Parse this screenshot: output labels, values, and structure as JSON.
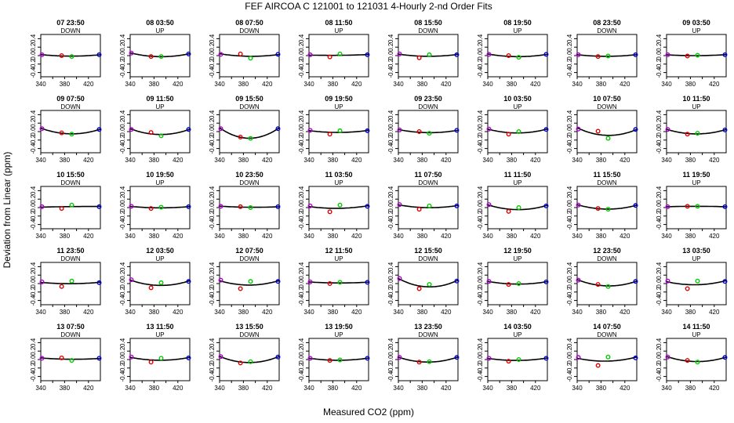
{
  "chart_data": {
    "type": "scatter",
    "title": "FEF   AIRCOA C   121001 to 121031   4-Hourly 2-nd Order Fits",
    "xlabel": "Measured CO2 (ppm)",
    "ylabel": "Deviation from Linear (ppm)",
    "xlim": [
      340,
      440
    ],
    "ylim": [
      -0.5,
      0.5
    ],
    "xticks": [
      340,
      380,
      420
    ],
    "xticks_minor": [
      360,
      400
    ],
    "yticks": [
      -0.4,
      -0.2,
      0,
      0.2,
      0.4
    ],
    "ytick_labels": [
      "-0.4",
      "-0.2",
      "0.0",
      "0.2",
      "0.4"
    ],
    "standards_x": [
      342,
      375,
      392,
      438
    ],
    "marker_colors": [
      "#aa00cc",
      "#dd0000",
      "#00cc00",
      "#0000cc"
    ],
    "layout": "5 rows x 8 columns",
    "panels": [
      {
        "time": "07 23:50",
        "mode": "DOWN",
        "y": [
          0.02,
          0.0,
          -0.02,
          0.02
        ]
      },
      {
        "time": "08 03:50",
        "mode": "UP",
        "y": [
          0.06,
          -0.02,
          -0.02,
          0.04
        ]
      },
      {
        "time": "08 07:50",
        "mode": "DOWN",
        "y": [
          0.03,
          0.04,
          -0.06,
          0.03
        ]
      },
      {
        "time": "08 11:50",
        "mode": "UP",
        "y": [
          0.02,
          -0.03,
          0.04,
          0.02
        ]
      },
      {
        "time": "08 15:50",
        "mode": "DOWN",
        "y": [
          0.04,
          -0.05,
          0.02,
          0.02
        ]
      },
      {
        "time": "08 19:50",
        "mode": "UP",
        "y": [
          0.03,
          0.0,
          -0.04,
          0.03
        ]
      },
      {
        "time": "08 23:50",
        "mode": "DOWN",
        "y": [
          0.02,
          -0.02,
          -0.01,
          0.02
        ]
      },
      {
        "time": "09 03:50",
        "mode": "UP",
        "y": [
          0.02,
          -0.01,
          0.01,
          0.02
        ]
      },
      {
        "time": "09 07:50",
        "mode": "DOWN",
        "y": [
          0.07,
          -0.03,
          -0.06,
          0.05
        ]
      },
      {
        "time": "09 11:50",
        "mode": "UP",
        "y": [
          0.05,
          -0.02,
          -0.1,
          0.05
        ]
      },
      {
        "time": "09 15:50",
        "mode": "DOWN",
        "y": [
          0.07,
          -0.13,
          -0.16,
          0.07
        ]
      },
      {
        "time": "09 19:50",
        "mode": "UP",
        "y": [
          0.03,
          -0.06,
          0.02,
          0.02
        ]
      },
      {
        "time": "09 23:50",
        "mode": "DOWN",
        "y": [
          0.04,
          0.0,
          -0.04,
          0.03
        ]
      },
      {
        "time": "10 03:50",
        "mode": "UP",
        "y": [
          0.06,
          -0.06,
          0.0,
          0.05
        ]
      },
      {
        "time": "10 07:50",
        "mode": "DOWN",
        "y": [
          0.06,
          0.01,
          -0.16,
          0.05
        ]
      },
      {
        "time": "10 11:50",
        "mode": "UP",
        "y": [
          0.05,
          -0.06,
          -0.04,
          0.04
        ]
      },
      {
        "time": "10 15:50",
        "mode": "DOWN",
        "y": [
          0.02,
          -0.02,
          0.06,
          0.02
        ]
      },
      {
        "time": "10 19:50",
        "mode": "UP",
        "y": [
          0.03,
          -0.02,
          0.01,
          0.02
        ]
      },
      {
        "time": "10 23:50",
        "mode": "DOWN",
        "y": [
          0.03,
          0.02,
          0.0,
          0.02
        ]
      },
      {
        "time": "11 03:50",
        "mode": "UP",
        "y": [
          0.04,
          -0.1,
          0.06,
          0.03
        ]
      },
      {
        "time": "11 07:50",
        "mode": "DOWN",
        "y": [
          0.07,
          -0.04,
          0.04,
          0.04
        ]
      },
      {
        "time": "11 11:50",
        "mode": "UP",
        "y": [
          0.07,
          -0.09,
          0.0,
          0.04
        ]
      },
      {
        "time": "11 15:50",
        "mode": "DOWN",
        "y": [
          0.06,
          -0.02,
          -0.04,
          0.05
        ]
      },
      {
        "time": "11 19:50",
        "mode": "UP",
        "y": [
          0.02,
          0.03,
          0.03,
          0.02
        ]
      },
      {
        "time": "11 23:50",
        "mode": "DOWN",
        "y": [
          0.04,
          -0.07,
          0.06,
          0.02
        ]
      },
      {
        "time": "12 03:50",
        "mode": "UP",
        "y": [
          0.09,
          -0.1,
          0.02,
          0.05
        ]
      },
      {
        "time": "12 07:50",
        "mode": "DOWN",
        "y": [
          0.08,
          -0.12,
          0.05,
          0.05
        ]
      },
      {
        "time": "12 11:50",
        "mode": "UP",
        "y": [
          0.04,
          0.0,
          0.03,
          0.03
        ]
      },
      {
        "time": "12 15:50",
        "mode": "DOWN",
        "y": [
          0.12,
          -0.12,
          -0.02,
          0.06
        ]
      },
      {
        "time": "12 19:50",
        "mode": "UP",
        "y": [
          0.05,
          -0.02,
          0.0,
          0.04
        ]
      },
      {
        "time": "12 23:50",
        "mode": "DOWN",
        "y": [
          0.08,
          -0.02,
          -0.07,
          0.05
        ]
      },
      {
        "time": "13 03:50",
        "mode": "UP",
        "y": [
          0.06,
          -0.12,
          0.06,
          0.05
        ]
      },
      {
        "time": "13 07:50",
        "mode": "DOWN",
        "y": [
          0.03,
          0.04,
          -0.02,
          0.03
        ]
      },
      {
        "time": "13 11:50",
        "mode": "UP",
        "y": [
          0.06,
          -0.06,
          0.03,
          0.04
        ]
      },
      {
        "time": "13 15:50",
        "mode": "DOWN",
        "y": [
          0.07,
          -0.08,
          -0.05,
          0.06
        ]
      },
      {
        "time": "13 19:50",
        "mode": "UP",
        "y": [
          0.03,
          -0.02,
          -0.01,
          0.03
        ]
      },
      {
        "time": "13 23:50",
        "mode": "DOWN",
        "y": [
          0.05,
          -0.06,
          -0.05,
          0.05
        ]
      },
      {
        "time": "14 03:50",
        "mode": "UP",
        "y": [
          0.03,
          -0.04,
          0.0,
          0.03
        ]
      },
      {
        "time": "14 07:50",
        "mode": "DOWN",
        "y": [
          0.05,
          -0.14,
          0.06,
          0.04
        ]
      },
      {
        "time": "14 11:50",
        "mode": "UP",
        "y": [
          0.06,
          -0.02,
          -0.06,
          0.05
        ]
      }
    ]
  }
}
